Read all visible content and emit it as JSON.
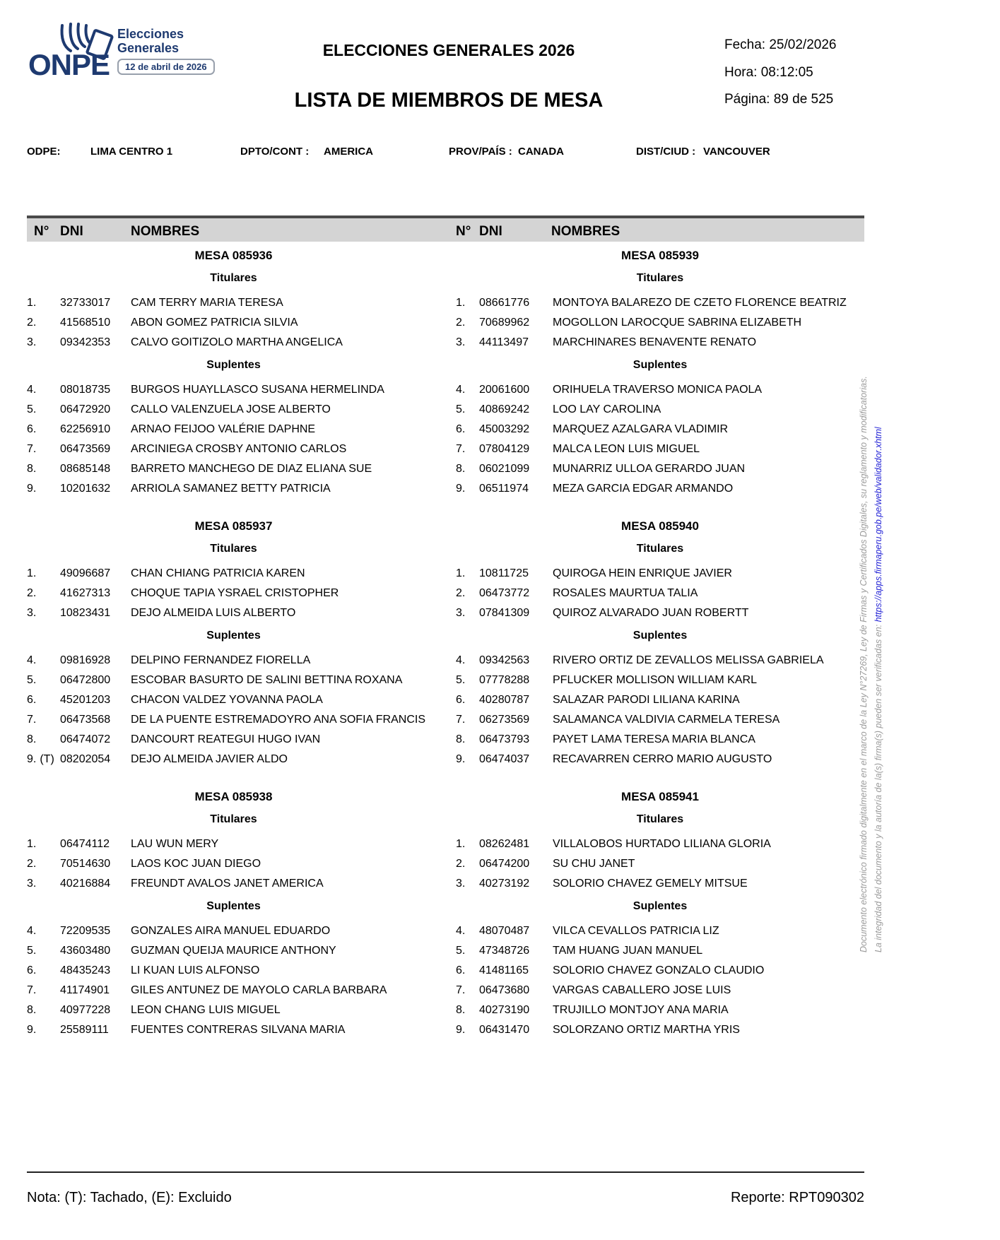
{
  "page": {
    "logo": {
      "onpe": "ONPE",
      "elecciones": "Elecciones",
      "generales": "Generales",
      "badge": "12 de abril de 2026"
    },
    "header": {
      "title": "ELECCIONES GENERALES 2026",
      "subtitle": "LISTA DE MIEMBROS DE MESA",
      "fecha": "Fecha: 25/02/2026",
      "hora": "Hora: 08:12:05",
      "pagina": "Página: 89 de 525"
    },
    "info": {
      "odpe_label": "ODPE:",
      "odpe": "LIMA CENTRO 1",
      "dpto_label": "DPTO/CONT :",
      "dpto": "AMERICA",
      "prov_label": "PROV/PAÍS :",
      "prov": "CANADA",
      "dist_label": "DIST/CIUD :",
      "dist": "VANCOUVER"
    },
    "table_header": {
      "n": "N°",
      "dni": "DNI",
      "nombres": "NOMBRES"
    },
    "columns": [
      {
        "mesas": [
          {
            "mesa": "MESA 085936",
            "titulares_label": "Titulares",
            "suplentes_label": "Suplentes",
            "titulares": [
              {
                "n": "1.",
                "dni": "32733017",
                "name": "CAM TERRY MARIA TERESA"
              },
              {
                "n": "2.",
                "dni": "41568510",
                "name": "ABON GOMEZ PATRICIA SILVIA"
              },
              {
                "n": "3.",
                "dni": "09342353",
                "name": "CALVO GOITIZOLO MARTHA ANGELICA"
              }
            ],
            "suplentes": [
              {
                "n": "4.",
                "dni": "08018735",
                "name": "BURGOS HUAYLLASCO SUSANA HERMELINDA"
              },
              {
                "n": "5.",
                "dni": "06472920",
                "name": "CALLO VALENZUELA JOSE ALBERTO"
              },
              {
                "n": "6.",
                "dni": "62256910",
                "name": "ARNAO FEIJOO VALÉRIE DAPHNE"
              },
              {
                "n": "7.",
                "dni": "06473569",
                "name": "ARCINIEGA CROSBY ANTONIO CARLOS"
              },
              {
                "n": "8.",
                "dni": "08685148",
                "name": "BARRETO MANCHEGO DE DIAZ ELIANA SUE"
              },
              {
                "n": "9.",
                "dni": "10201632",
                "name": "ARRIOLA SAMANEZ BETTY PATRICIA"
              }
            ]
          },
          {
            "mesa": "MESA 085937",
            "titulares_label": "Titulares",
            "suplentes_label": "Suplentes",
            "titulares": [
              {
                "n": "1.",
                "dni": "49096687",
                "name": "CHAN CHIANG PATRICIA KAREN"
              },
              {
                "n": "2.",
                "dni": "41627313",
                "name": "CHOQUE TAPIA YSRAEL CRISTOPHER"
              },
              {
                "n": "3.",
                "dni": "10823431",
                "name": "DEJO ALMEIDA LUIS ALBERTO"
              }
            ],
            "suplentes": [
              {
                "n": "4.",
                "dni": "09816928",
                "name": "DELPINO FERNANDEZ FIORELLA"
              },
              {
                "n": "5.",
                "dni": "06472800",
                "name": "ESCOBAR BASURTO DE SALINI BETTINA ROXANA"
              },
              {
                "n": "6.",
                "dni": "45201203",
                "name": "CHACON VALDEZ YOVANNA PAOLA"
              },
              {
                "n": "7.",
                "dni": "06473568",
                "name": "DE LA PUENTE ESTREMADOYRO ANA SOFIA FRANCIS"
              },
              {
                "n": "8.",
                "dni": "06474072",
                "name": "DANCOURT REATEGUI HUGO IVAN"
              },
              {
                "n": "9.",
                "tag": "(T)",
                "dni": "08202054",
                "name": "DEJO ALMEIDA JAVIER ALDO"
              }
            ]
          },
          {
            "mesa": "MESA 085938",
            "titulares_label": "Titulares",
            "suplentes_label": "Suplentes",
            "titulares": [
              {
                "n": "1.",
                "dni": "06474112",
                "name": "LAU WUN MERY"
              },
              {
                "n": "2.",
                "dni": "70514630",
                "name": "LAOS KOC JUAN DIEGO"
              },
              {
                "n": "3.",
                "dni": "40216884",
                "name": "FREUNDT AVALOS JANET AMERICA"
              }
            ],
            "suplentes": [
              {
                "n": "4.",
                "dni": "72209535",
                "name": "GONZALES AIRA MANUEL EDUARDO"
              },
              {
                "n": "5.",
                "dni": "43603480",
                "name": "GUZMAN QUEIJA MAURICE ANTHONY"
              },
              {
                "n": "6.",
                "dni": "48435243",
                "name": "LI KUAN LUIS ALFONSO"
              },
              {
                "n": "7.",
                "dni": "41174901",
                "name": "GILES ANTUNEZ DE MAYOLO CARLA BARBARA"
              },
              {
                "n": "8.",
                "dni": "40977228",
                "name": "LEON CHANG LUIS MIGUEL"
              },
              {
                "n": "9.",
                "dni": "25589111",
                "name": "FUENTES CONTRERAS SILVANA MARIA"
              }
            ]
          }
        ]
      },
      {
        "mesas": [
          {
            "mesa": "MESA 085939",
            "titulares_label": "Titulares",
            "suplentes_label": "Suplentes",
            "titulares": [
              {
                "n": "1.",
                "dni": "08661776",
                "name": "MONTOYA BALAREZO DE CZETO FLORENCE BEATRIZ"
              },
              {
                "n": "2.",
                "dni": "70689962",
                "name": "MOGOLLON LAROCQUE SABRINA ELIZABETH"
              },
              {
                "n": "3.",
                "dni": "44113497",
                "name": "MARCHINARES BENAVENTE RENATO"
              }
            ],
            "suplentes": [
              {
                "n": "4.",
                "dni": "20061600",
                "name": "ORIHUELA TRAVERSO MONICA PAOLA"
              },
              {
                "n": "5.",
                "dni": "40869242",
                "name": "LOO LAY CAROLINA"
              },
              {
                "n": "6.",
                "dni": "45003292",
                "name": "MARQUEZ AZALGARA VLADIMIR"
              },
              {
                "n": "7.",
                "dni": "07804129",
                "name": "MALCA LEON LUIS MIGUEL"
              },
              {
                "n": "8.",
                "dni": "06021099",
                "name": "MUNARRIZ ULLOA GERARDO JUAN"
              },
              {
                "n": "9.",
                "dni": "06511974",
                "name": "MEZA GARCIA EDGAR ARMANDO"
              }
            ]
          },
          {
            "mesa": "MESA 085940",
            "titulares_label": "Titulares",
            "suplentes_label": "Suplentes",
            "titulares": [
              {
                "n": "1.",
                "dni": "10811725",
                "name": "QUIROGA HEIN ENRIQUE JAVIER"
              },
              {
                "n": "2.",
                "dni": "06473772",
                "name": "ROSALES MAURTUA TALIA"
              },
              {
                "n": "3.",
                "dni": "07841309",
                "name": "QUIROZ ALVARADO JUAN ROBERTT"
              }
            ],
            "suplentes": [
              {
                "n": "4.",
                "dni": "09342563",
                "name": "RIVERO ORTIZ DE ZEVALLOS MELISSA GABRIELA"
              },
              {
                "n": "5.",
                "dni": "07778288",
                "name": "PFLUCKER MOLLISON WILLIAM KARL"
              },
              {
                "n": "6.",
                "dni": "40280787",
                "name": "SALAZAR PARODI LILIANA KARINA"
              },
              {
                "n": "7.",
                "dni": "06273569",
                "name": "SALAMANCA VALDIVIA CARMELA TERESA"
              },
              {
                "n": "8.",
                "dni": "06473793",
                "name": "PAYET LAMA TERESA MARIA BLANCA"
              },
              {
                "n": "9.",
                "dni": "06474037",
                "name": "RECAVARREN CERRO MARIO AUGUSTO"
              }
            ]
          },
          {
            "mesa": "MESA 085941",
            "titulares_label": "Titulares",
            "suplentes_label": "Suplentes",
            "titulares": [
              {
                "n": "1.",
                "dni": "08262481",
                "name": "VILLALOBOS HURTADO LILIANA GLORIA"
              },
              {
                "n": "2.",
                "dni": "06474200",
                "name": "SU CHU JANET"
              },
              {
                "n": "3.",
                "dni": "40273192",
                "name": "SOLORIO CHAVEZ GEMELY MITSUE"
              }
            ],
            "suplentes": [
              {
                "n": "4.",
                "dni": "48070487",
                "name": "VILCA CEVALLOS PATRICIA LIZ"
              },
              {
                "n": "5.",
                "dni": "47348726",
                "name": "TAM HUANG JUAN MANUEL"
              },
              {
                "n": "6.",
                "dni": "41481165",
                "name": "SOLORIO CHAVEZ GONZALO CLAUDIO"
              },
              {
                "n": "7.",
                "dni": "06473680",
                "name": "VARGAS CABALLERO JOSE LUIS"
              },
              {
                "n": "8.",
                "dni": "40273190",
                "name": "TRUJILLO MONTJOY ANA MARIA"
              },
              {
                "n": "9.",
                "dni": "06431470",
                "name": "SOLORZANO ORTIZ MARTHA YRIS"
              }
            ]
          }
        ]
      }
    ],
    "footer": {
      "nota": "Nota: (T): Tachado, (E): Excluido",
      "reporte": "Reporte: RPT090302"
    },
    "legal": {
      "line1": "Documento electrónico firmado digitalmente en el marco de la Ley N°27269, Ley de Firmas y Certificados Digitales, su reglamento y modificatorias.",
      "line2_text": "La integridad del documento y la autoría de la(s) firma(s) pueden ser verificadas en: ",
      "line2_url": "https://apps.firmaperu.gob.pe/web/validador.xhtml"
    },
    "colors": {
      "brand_blue": "#1e3a70",
      "link_blue": "#2323d6",
      "header_gray": "#d4d4d4"
    }
  }
}
